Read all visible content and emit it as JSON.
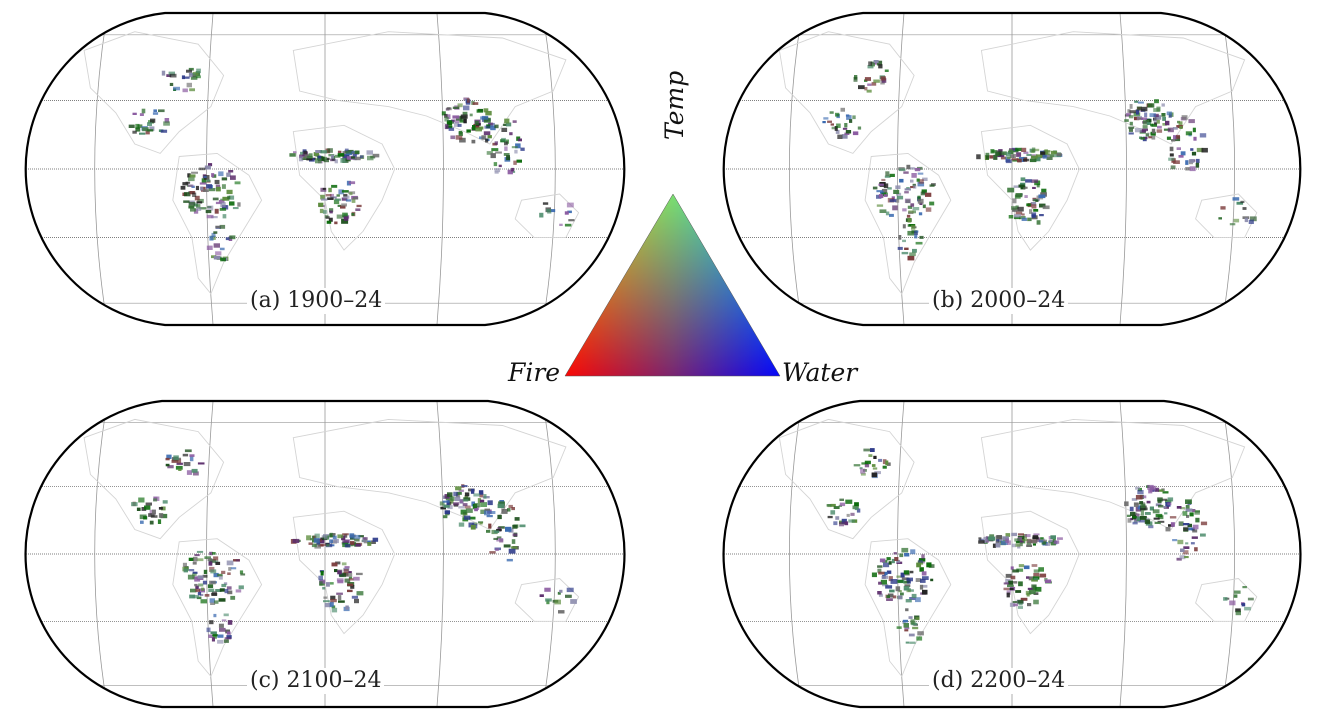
{
  "panels": [
    {
      "id": "a",
      "label": "(a) 1900–24"
    },
    {
      "id": "b",
      "label": "(b) 2000–24"
    },
    {
      "id": "c",
      "label": "(c) 2100–24"
    },
    {
      "id": "d",
      "label": "(d) 2200–24"
    }
  ],
  "legend": {
    "top": "Temp",
    "left": "Fire",
    "right": "Water",
    "colors": {
      "top": "#00e000",
      "left": "#ff0000",
      "right": "#0000ff"
    }
  },
  "map": {
    "projection": "equal-earth-like",
    "graticule": true,
    "regions": [
      "north-america",
      "south-america",
      "africa-sahel",
      "southern-africa",
      "south-asia",
      "southeast-asia",
      "australia"
    ]
  }
}
